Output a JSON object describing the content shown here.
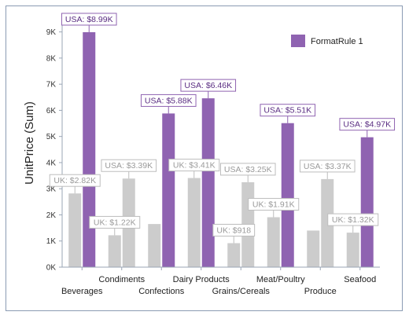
{
  "chart_data": {
    "type": "bar",
    "categories": [
      "Beverages",
      "Condiments",
      "Confections",
      "Dairy Products",
      "Grains/Cereals",
      "Meat/Poultry",
      "Produce",
      "Seafood"
    ],
    "series": [
      {
        "name": "UK",
        "values": [
          2820,
          1220,
          1650,
          3410,
          918,
          1910,
          1400,
          1320
        ],
        "color": "#cccccc"
      },
      {
        "name": "USA",
        "values": [
          8990,
          3390,
          5880,
          6460,
          3250,
          5510,
          3370,
          4970
        ],
        "color": "#8f63b1"
      }
    ],
    "highlighted_color": "#8f63b1",
    "default_color": "#cccccc",
    "data_labels": [
      {
        "series": "UK",
        "category": "Beverages",
        "text": "UK: $2.82K",
        "highlighted": false
      },
      {
        "series": "USA",
        "category": "Beverages",
        "text": "USA: $8.99K",
        "highlighted": true
      },
      {
        "series": "UK",
        "category": "Condiments",
        "text": "UK: $1.22K",
        "highlighted": false
      },
      {
        "series": "USA",
        "category": "Condiments",
        "text": "USA: $3.39K",
        "highlighted": false
      },
      {
        "series": "USA",
        "category": "Confections",
        "text": "USA: $5.88K",
        "highlighted": true
      },
      {
        "series": "UK",
        "category": "Dairy Products",
        "text": "UK: $3.41K",
        "highlighted": false
      },
      {
        "series": "USA",
        "category": "Dairy Products",
        "text": "USA: $6.46K",
        "highlighted": true
      },
      {
        "series": "UK",
        "category": "Grains/Cereals",
        "text": "UK: $918",
        "highlighted": false
      },
      {
        "series": "USA",
        "category": "Grains/Cereals",
        "text": "USA: $3.25K",
        "highlighted": false
      },
      {
        "series": "UK",
        "category": "Meat/Poultry",
        "text": "UK: $1.91K",
        "highlighted": false
      },
      {
        "series": "USA",
        "category": "Meat/Poultry",
        "text": "USA: $5.51K",
        "highlighted": true
      },
      {
        "series": "USA",
        "category": "Produce",
        "text": "USA: $3.37K",
        "highlighted": false
      },
      {
        "series": "UK",
        "category": "Seafood",
        "text": "UK: $1.32K",
        "highlighted": false
      },
      {
        "series": "USA",
        "category": "Seafood",
        "text": "USA: $4.97K",
        "highlighted": true
      }
    ],
    "ylabel": "UnitPrice (Sum)",
    "xlabel": "",
    "ylim": [
      0,
      9500
    ],
    "yticks": [
      0,
      1000,
      2000,
      3000,
      4000,
      5000,
      6000,
      7000,
      8000,
      9000
    ],
    "ytick_labels": [
      "0K",
      "1K",
      "2K",
      "3K",
      "4K",
      "5K",
      "6K",
      "7K",
      "8K",
      "9K"
    ],
    "legend": {
      "entries": [
        {
          "label": "FormatRule 1",
          "color": "#8f63b1"
        }
      ],
      "position": "top-right"
    },
    "grid": false
  }
}
